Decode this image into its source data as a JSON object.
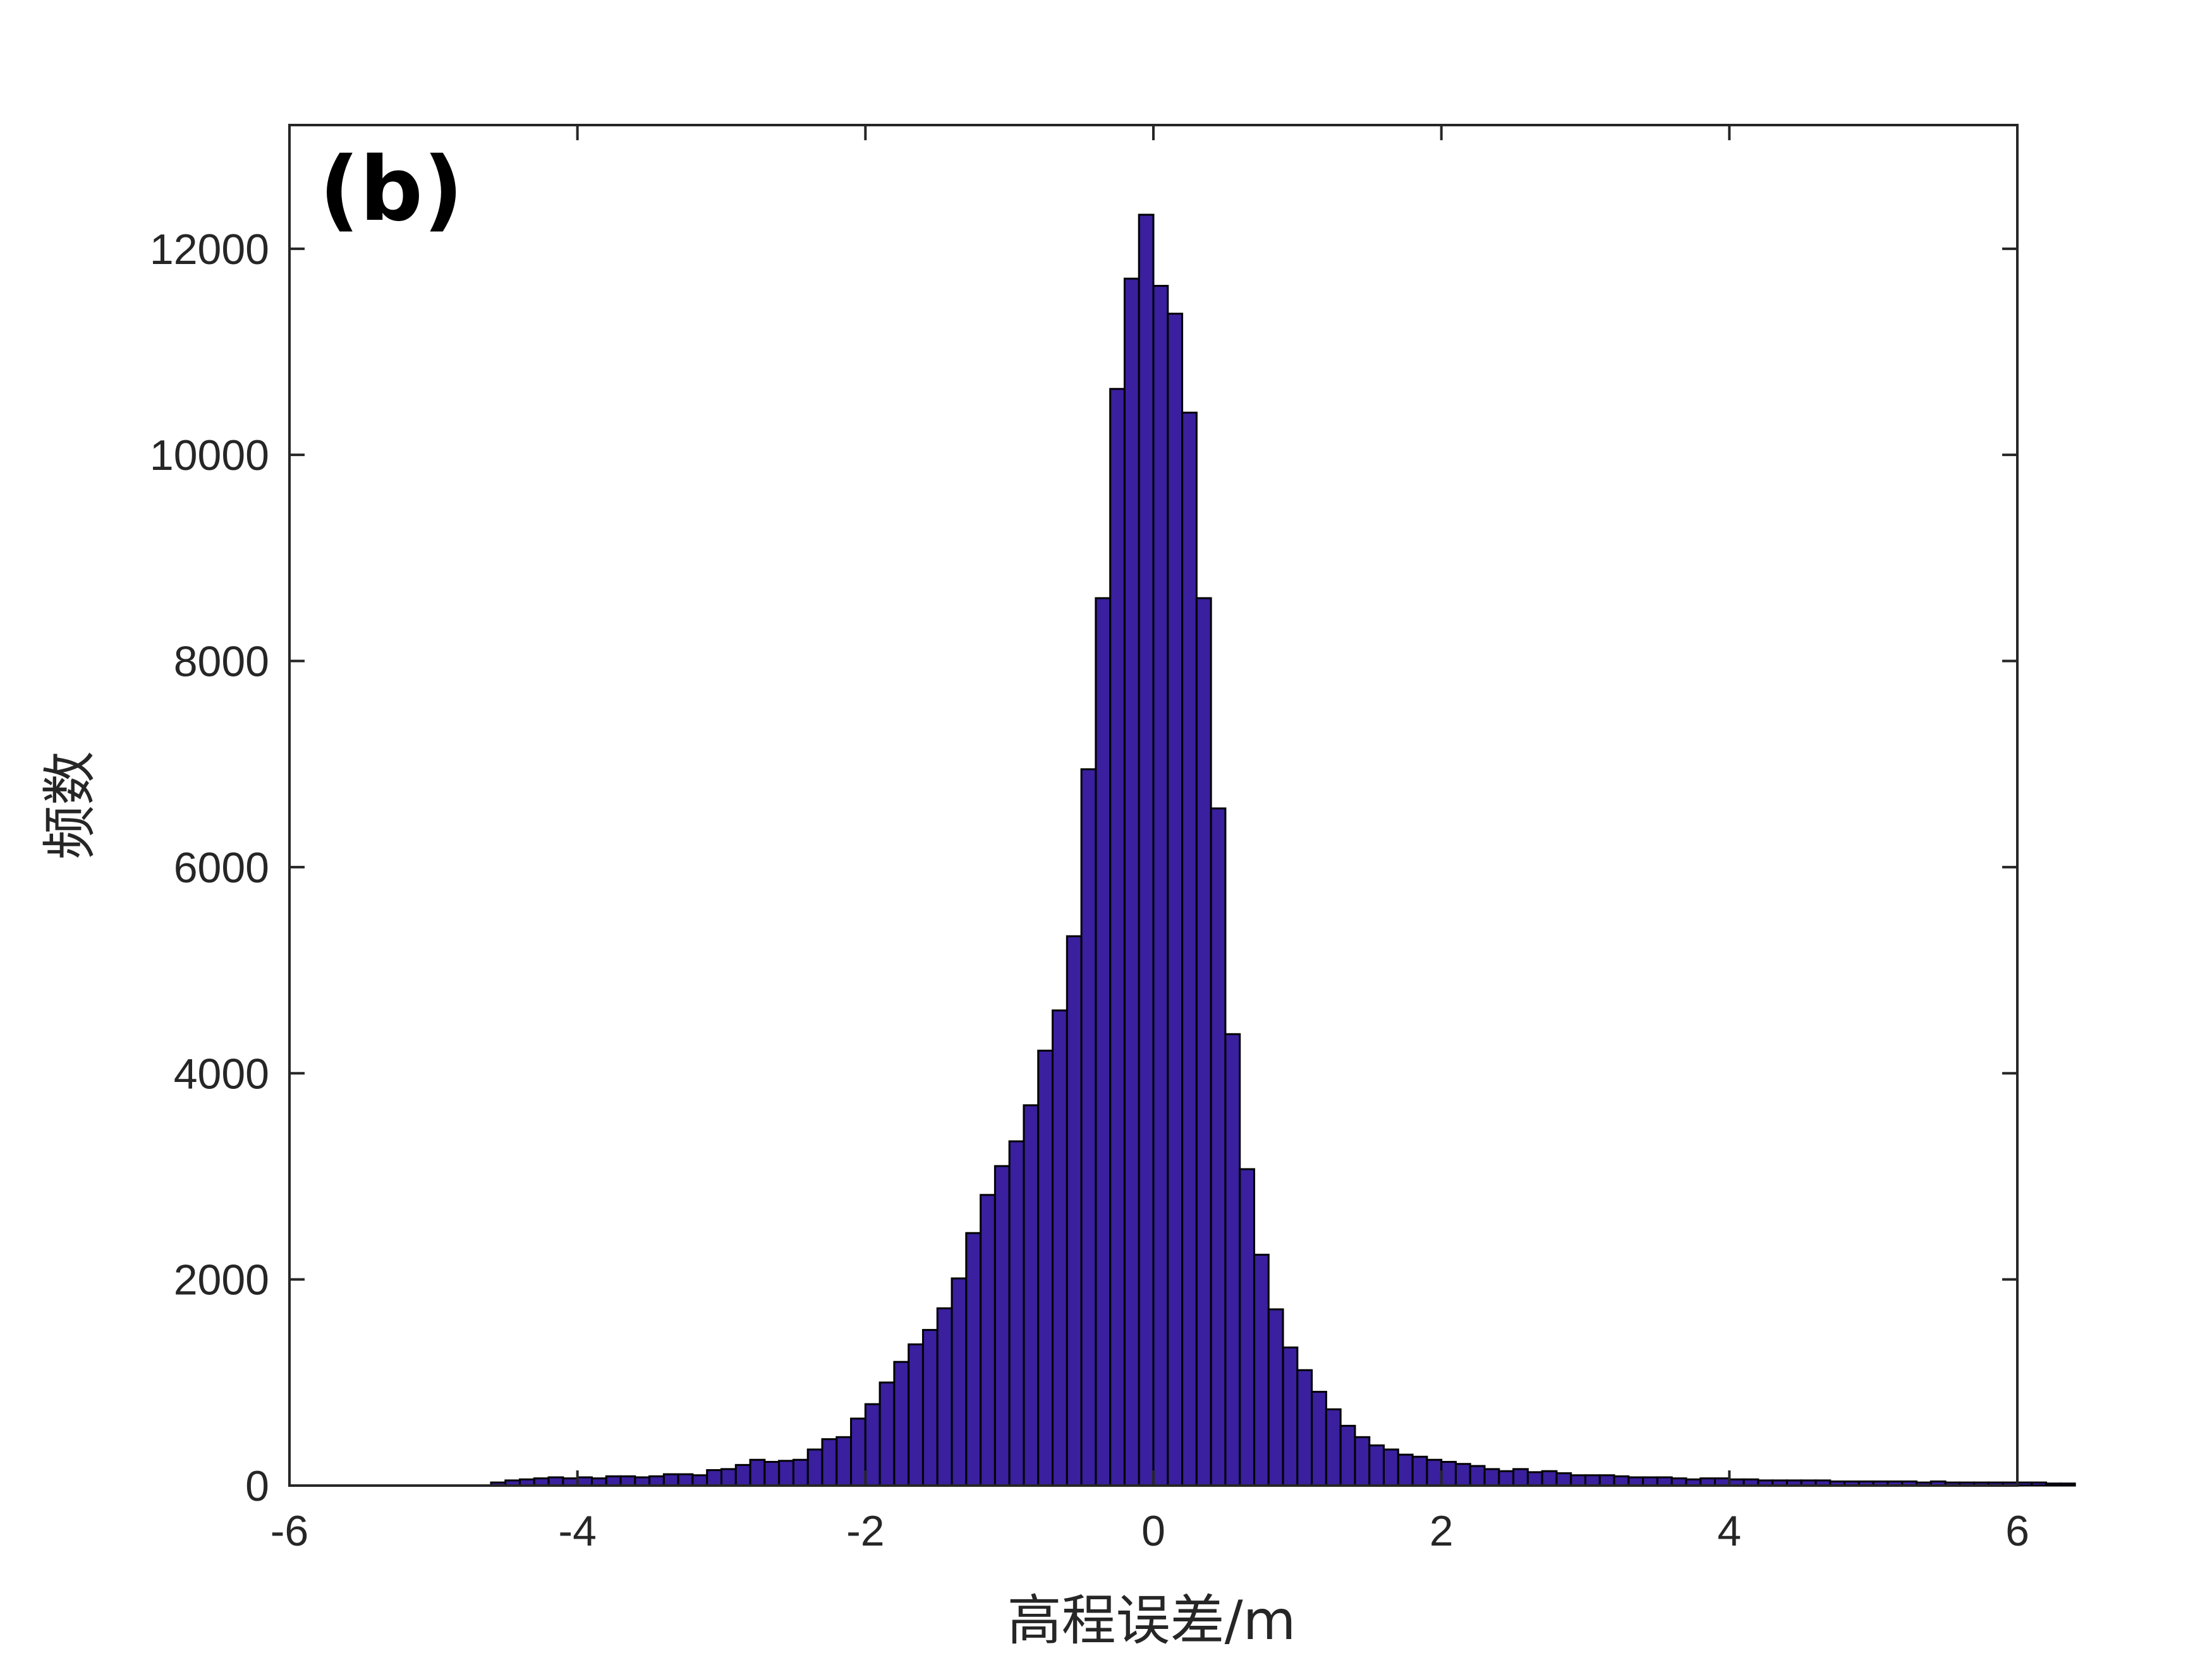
{
  "chart_data": {
    "type": "bar",
    "panel_label": "(b)",
    "xlabel": "高程误差/m",
    "ylabel": "频数",
    "xlim": [
      -6,
      6
    ],
    "ylim": [
      0,
      13200
    ],
    "xticks": [
      -6,
      -4,
      -2,
      0,
      2,
      4,
      6
    ],
    "yticks": [
      0,
      2000,
      4000,
      6000,
      8000,
      10000,
      12000
    ],
    "xtick_labels": [
      "-6",
      "-4",
      "-2",
      "0",
      "2",
      "4",
      "6"
    ],
    "ytick_labels": [
      "0",
      "2000",
      "4000",
      "6000",
      "8000",
      "10000",
      "12000"
    ],
    "grid": false,
    "bar_color": "#3a1f9e",
    "edge_color": "#000000",
    "bin_width": 0.1,
    "bin_start": -4.6,
    "values": [
      30,
      50,
      60,
      70,
      80,
      70,
      80,
      70,
      90,
      90,
      80,
      90,
      110,
      110,
      100,
      150,
      160,
      200,
      250,
      230,
      240,
      250,
      350,
      450,
      470,
      650,
      790,
      1000,
      1200,
      1370,
      1510,
      1720,
      2010,
      2450,
      2820,
      3100,
      3340,
      3690,
      4220,
      4610,
      5330,
      6950,
      8610,
      10640,
      11710,
      12330,
      11640,
      11370,
      10410,
      8610,
      6570,
      4380,
      3070,
      2240,
      1710,
      1340,
      1120,
      910,
      740,
      580,
      470,
      390,
      350,
      300,
      280,
      250,
      230,
      210,
      190,
      160,
      140,
      160,
      130,
      140,
      120,
      100,
      100,
      100,
      90,
      80,
      80,
      80,
      70,
      60,
      70,
      70,
      60,
      60,
      50,
      50,
      50,
      50,
      50,
      40,
      40,
      40,
      40,
      40,
      40,
      30,
      40,
      30,
      30,
      30,
      30,
      30,
      30,
      30,
      20,
      20
    ]
  }
}
